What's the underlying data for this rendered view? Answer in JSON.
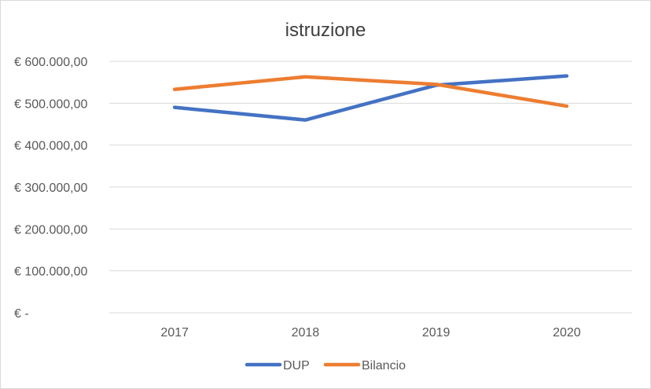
{
  "chart_data": {
    "type": "line",
    "title": "istruzione",
    "xlabel": "",
    "ylabel": "",
    "categories": [
      "2017",
      "2018",
      "2019",
      "2020"
    ],
    "ylim": [
      0,
      600000
    ],
    "yticks": [
      0,
      100000,
      200000,
      300000,
      400000,
      500000,
      600000
    ],
    "ytick_labels": [
      "€ -",
      "€ 100.000,00",
      "€ 200.000,00",
      "€ 300.000,00",
      "€ 400.000,00",
      "€ 500.000,00",
      "€ 600.000,00"
    ],
    "grid": true,
    "legend_position": "bottom",
    "series": [
      {
        "name": "DUP",
        "color": "#4472C4",
        "values": [
          490000,
          460000,
          543000,
          565000
        ]
      },
      {
        "name": "Bilancio",
        "color": "#ED7D31",
        "values": [
          533000,
          563000,
          545000,
          493000
        ]
      }
    ]
  }
}
